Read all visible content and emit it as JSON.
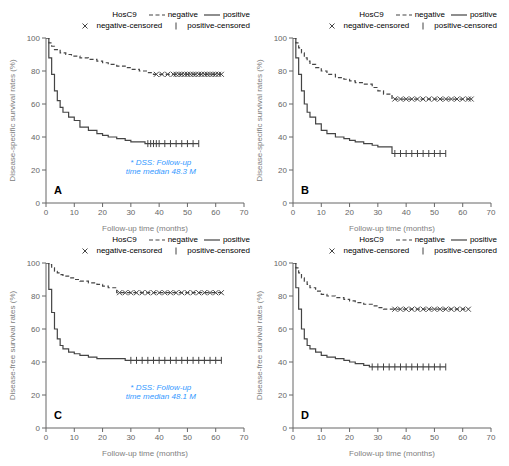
{
  "chart_data": [
    {
      "type": "line",
      "panel_label": "A",
      "xlabel": "Follow-up time (months)",
      "ylabel": "Disease-specific survival rates (%)",
      "xlim": [
        0,
        70
      ],
      "ylim": [
        0,
        100
      ],
      "xticks": [
        0,
        10,
        20,
        30,
        40,
        50,
        60,
        70
      ],
      "yticks": [
        0,
        20,
        40,
        60,
        80,
        100
      ],
      "grid": false,
      "legend": "upper right",
      "legend_title": "HosC9",
      "annotations": [
        {
          "text": "* DSS: Follow-up\ntime median 48.3 M",
          "color": "#3399ff"
        }
      ],
      "series": [
        {
          "name": "negative",
          "type": "line",
          "line_style": "dashed",
          "color": "#444444",
          "x": [
            0,
            1,
            2,
            3,
            5,
            7,
            9,
            12,
            15,
            18,
            20,
            22,
            25,
            28,
            30,
            33,
            36,
            38,
            38,
            62
          ],
          "values": [
            100,
            97,
            95,
            93,
            91,
            90,
            89,
            88,
            87,
            86,
            85,
            84,
            83,
            82,
            81,
            80,
            79,
            78,
            78,
            78
          ]
        },
        {
          "name": "positive",
          "type": "line",
          "line_style": "solid",
          "color": "#444444",
          "x": [
            0,
            1,
            2,
            3,
            4,
            5,
            6,
            8,
            10,
            12,
            15,
            18,
            20,
            22,
            25,
            28,
            30,
            35,
            35,
            54
          ],
          "values": [
            100,
            88,
            78,
            68,
            62,
            58,
            55,
            52,
            50,
            46,
            44,
            42,
            41,
            40,
            39,
            38,
            37,
            36,
            36,
            36
          ]
        },
        {
          "name": "negative-censored",
          "type": "scatter",
          "marker": "x",
          "color": "#444444",
          "x": [
            39,
            41,
            43,
            45,
            46,
            47,
            48,
            49,
            50,
            51,
            52,
            53,
            54,
            55,
            56,
            57,
            58,
            59,
            60,
            61,
            62
          ],
          "values": [
            78,
            78,
            78,
            78,
            78,
            78,
            78,
            78,
            78,
            78,
            78,
            78,
            78,
            78,
            78,
            78,
            78,
            78,
            78,
            78,
            78
          ]
        },
        {
          "name": "positive-censored",
          "type": "scatter",
          "marker": "|",
          "color": "#444444",
          "x": [
            36,
            37,
            38,
            39,
            40,
            42,
            44,
            46,
            48,
            50,
            52,
            54
          ],
          "values": [
            36,
            36,
            36,
            36,
            36,
            36,
            36,
            36,
            36,
            36,
            36,
            36
          ]
        }
      ]
    },
    {
      "type": "line",
      "panel_label": "B",
      "xlabel": "Follow-up time (months)",
      "ylabel": "Disease-specific survival rates (%)",
      "xlim": [
        0,
        70
      ],
      "ylim": [
        0,
        100
      ],
      "xticks": [
        0,
        10,
        20,
        30,
        40,
        50,
        60,
        70
      ],
      "yticks": [
        0,
        20,
        40,
        60,
        80,
        100
      ],
      "grid": false,
      "legend": "upper right",
      "legend_title": "HosC9",
      "series": [
        {
          "name": "negative",
          "type": "line",
          "line_style": "dashed",
          "color": "#444444",
          "x": [
            0,
            1,
            2,
            3,
            4,
            5,
            6,
            8,
            10,
            12,
            15,
            18,
            20,
            22,
            25,
            28,
            30,
            32,
            35,
            35,
            63
          ],
          "values": [
            100,
            97,
            94,
            91,
            88,
            86,
            84,
            82,
            80,
            78,
            76,
            75,
            74,
            73,
            72,
            70,
            68,
            66,
            64,
            63,
            63
          ]
        },
        {
          "name": "positive",
          "type": "line",
          "line_style": "solid",
          "color": "#444444",
          "x": [
            0,
            1,
            2,
            3,
            4,
            5,
            6,
            8,
            10,
            12,
            15,
            18,
            20,
            22,
            25,
            28,
            30,
            35,
            35,
            54
          ],
          "values": [
            100,
            88,
            78,
            68,
            60,
            55,
            52,
            48,
            44,
            42,
            40,
            39,
            38,
            37,
            36,
            35,
            34,
            33,
            30,
            30
          ]
        },
        {
          "name": "negative-censored",
          "type": "scatter",
          "marker": "x",
          "color": "#444444",
          "x": [
            36,
            38,
            40,
            42,
            44,
            46,
            48,
            50,
            52,
            54,
            56,
            58,
            60,
            62,
            63
          ],
          "values": [
            63,
            63,
            63,
            63,
            63,
            63,
            63,
            63,
            63,
            63,
            63,
            63,
            63,
            63,
            63
          ]
        },
        {
          "name": "positive-censored",
          "type": "scatter",
          "marker": "|",
          "color": "#444444",
          "x": [
            36,
            38,
            40,
            42,
            44,
            46,
            48,
            50,
            52,
            54
          ],
          "values": [
            30,
            30,
            30,
            30,
            30,
            30,
            30,
            30,
            30,
            30
          ]
        }
      ]
    },
    {
      "type": "line",
      "panel_label": "C",
      "xlabel": "Follow-up time (months)",
      "ylabel": "Disease-free survival rates (%)",
      "xlim": [
        0,
        70
      ],
      "ylim": [
        0,
        100
      ],
      "xticks": [
        0,
        10,
        20,
        30,
        40,
        50,
        60,
        70
      ],
      "yticks": [
        0,
        20,
        40,
        60,
        80,
        100
      ],
      "grid": false,
      "legend": "upper right",
      "legend_title": "HosC9",
      "annotations": [
        {
          "text": "* DSS: Follow-up\ntime median 48.1 M",
          "color": "#3399ff"
        }
      ],
      "series": [
        {
          "name": "negative",
          "type": "line",
          "line_style": "dashed",
          "color": "#444444",
          "x": [
            0,
            1,
            2,
            3,
            4,
            5,
            6,
            8,
            10,
            12,
            15,
            18,
            20,
            22,
            25,
            25,
            62
          ],
          "values": [
            100,
            99,
            97,
            95,
            94,
            93,
            92,
            91,
            90,
            89,
            88,
            87,
            86,
            85,
            83,
            82,
            82
          ]
        },
        {
          "name": "positive",
          "type": "line",
          "line_style": "solid",
          "color": "#444444",
          "x": [
            0,
            1,
            2,
            3,
            4,
            5,
            6,
            8,
            10,
            12,
            15,
            18,
            20,
            22,
            25,
            28,
            28,
            62
          ],
          "values": [
            100,
            84,
            70,
            60,
            54,
            50,
            48,
            46,
            45,
            44,
            43,
            42,
            42,
            42,
            42,
            41,
            41,
            41
          ]
        },
        {
          "name": "negative-censored",
          "type": "scatter",
          "marker": "x",
          "color": "#444444",
          "x": [
            26,
            28,
            30,
            32,
            34,
            36,
            38,
            40,
            42,
            44,
            46,
            48,
            50,
            52,
            54,
            56,
            58,
            60,
            62
          ],
          "values": [
            82,
            82,
            82,
            82,
            82,
            82,
            82,
            82,
            82,
            82,
            82,
            82,
            82,
            82,
            82,
            82,
            82,
            82,
            82
          ]
        },
        {
          "name": "positive-censored",
          "type": "scatter",
          "marker": "|",
          "color": "#444444",
          "x": [
            30,
            32,
            34,
            36,
            38,
            40,
            42,
            44,
            46,
            48,
            50,
            52,
            54,
            56,
            58,
            60,
            62
          ],
          "values": [
            41,
            41,
            41,
            41,
            41,
            41,
            41,
            41,
            41,
            41,
            41,
            41,
            41,
            41,
            41,
            41,
            41
          ]
        }
      ]
    },
    {
      "type": "line",
      "panel_label": "D",
      "xlabel": "Follow-up time (months)",
      "ylabel": "Disease-free survival rates (%)",
      "xlim": [
        0,
        70
      ],
      "ylim": [
        0,
        100
      ],
      "xticks": [
        0,
        10,
        20,
        30,
        40,
        50,
        60,
        70
      ],
      "yticks": [
        0,
        20,
        40,
        60,
        80,
        100
      ],
      "grid": false,
      "legend": "upper right",
      "legend_title": "HosC9",
      "series": [
        {
          "name": "negative",
          "type": "line",
          "line_style": "dashed",
          "color": "#444444",
          "x": [
            0,
            1,
            2,
            3,
            4,
            5,
            6,
            8,
            10,
            12,
            15,
            18,
            20,
            22,
            25,
            28,
            30,
            32,
            35,
            35,
            62
          ],
          "values": [
            100,
            97,
            94,
            91,
            89,
            87,
            85,
            83,
            81,
            80,
            79,
            78,
            77,
            76,
            75,
            74,
            73,
            72,
            72,
            72,
            72
          ]
        },
        {
          "name": "positive",
          "type": "line",
          "line_style": "solid",
          "color": "#444444",
          "x": [
            0,
            1,
            2,
            3,
            4,
            5,
            6,
            8,
            10,
            12,
            15,
            18,
            20,
            22,
            25,
            27,
            27,
            54
          ],
          "values": [
            100,
            85,
            72,
            60,
            54,
            50,
            48,
            46,
            44,
            43,
            42,
            41,
            40,
            39,
            38,
            37,
            37,
            37
          ]
        },
        {
          "name": "negative-censored",
          "type": "scatter",
          "marker": "x",
          "color": "#444444",
          "x": [
            36,
            38,
            40,
            42,
            44,
            46,
            48,
            50,
            52,
            54,
            56,
            58,
            60,
            62
          ],
          "values": [
            72,
            72,
            72,
            72,
            72,
            72,
            72,
            72,
            72,
            72,
            72,
            72,
            72,
            72
          ]
        },
        {
          "name": "positive-censored",
          "type": "scatter",
          "marker": "|",
          "color": "#444444",
          "x": [
            28,
            30,
            32,
            34,
            36,
            38,
            40,
            42,
            44,
            46,
            48,
            50,
            52,
            54
          ],
          "values": [
            37,
            37,
            37,
            37,
            37,
            37,
            37,
            37,
            37,
            37,
            37,
            37,
            37,
            37
          ]
        }
      ]
    }
  ]
}
